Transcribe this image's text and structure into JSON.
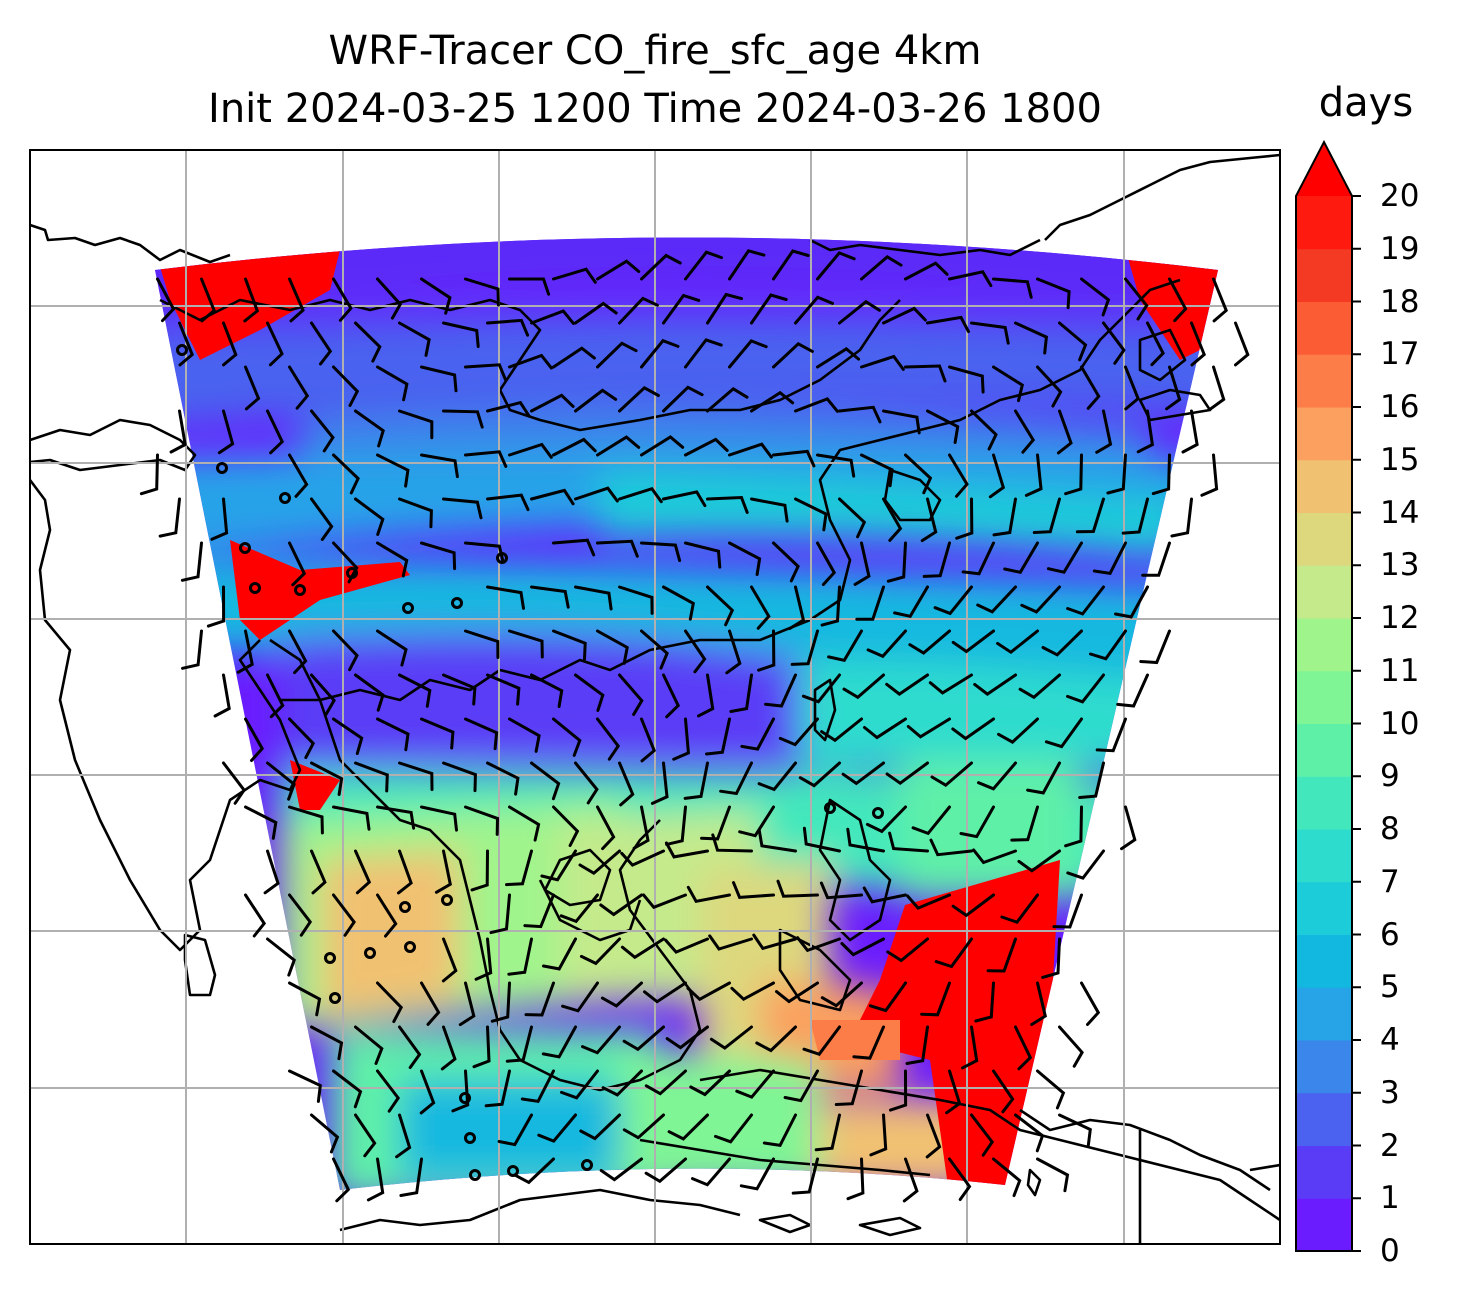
{
  "title": {
    "line1": "WRF-Tracer CO_fire_sfc_age 4km",
    "line2": "Init 2024-03-25 1200 Time 2024-03-26 1800"
  },
  "colorbar": {
    "unit": "days",
    "min": 0,
    "max": 20,
    "step": 1,
    "extend": "max",
    "tick_labels": [
      "0",
      "1",
      "2",
      "3",
      "4",
      "5",
      "6",
      "7",
      "8",
      "9",
      "10",
      "11",
      "12",
      "13",
      "14",
      "15",
      "16",
      "17",
      "18",
      "19",
      "20"
    ],
    "colors": [
      "#6a1cff",
      "#5a3cf6",
      "#4a62ef",
      "#3a86ea",
      "#27a3e8",
      "#12b8e0",
      "#1cccd8",
      "#2edcce",
      "#42e8bc",
      "#5ff0a8",
      "#7ff595",
      "#a0f48c",
      "#c4ea8c",
      "#ddd87e",
      "#f1c172",
      "#fba05e",
      "#fd7d48",
      "#fb5c34",
      "#f43a22",
      "#ff1a10"
    ],
    "extend_color": "#ff0000"
  },
  "map": {
    "field": "CO_fire_sfc_age",
    "gridlines": true,
    "coastlines": true,
    "wind_barbs": true
  }
}
